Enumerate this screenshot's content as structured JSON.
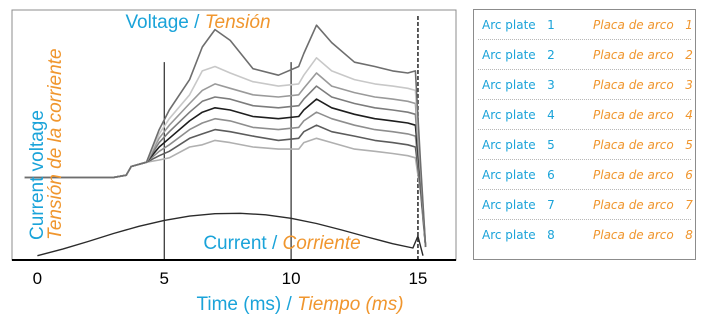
{
  "colors": {
    "english_text": "#1aa3d9",
    "spanish_text": "#f0962e",
    "axis": "#000000",
    "frame": "#8c8c8c"
  },
  "chart_data": {
    "type": "line",
    "title": {
      "en": "Voltage",
      "sep": " / ",
      "es": "Tensión"
    },
    "current_label": {
      "en": "Current",
      "sep": " / ",
      "es": "Corriente"
    },
    "xlabel": {
      "en": "Time (ms)",
      "sep": " / ",
      "es": "Tiempo (ms)"
    },
    "ylabel": {
      "en": "Current voltage",
      "es": "Tensión de la corriente"
    },
    "x_ticks": [
      "0",
      "5",
      "10",
      "15"
    ],
    "xlim": [
      -1,
      16.5
    ],
    "ylim": [
      -0.5,
      11
    ],
    "vertical_markers": [
      5,
      10
    ],
    "arc_end_marker": 15,
    "grid": false,
    "legend_position": "right",
    "voltage_series": [
      {
        "name": "Arc plate 1",
        "shade": "#6e6e6e",
        "x": [
          -0.5,
          3,
          3.5,
          3.7,
          4.3,
          4.8,
          5.2,
          6,
          6.5,
          7,
          7.6,
          8.5,
          9.5,
          10.3,
          10.5,
          11,
          11.6,
          12.5,
          13.3,
          14,
          14.6,
          14.9,
          15.1,
          15.3
        ],
        "y": [
          3.3,
          3.3,
          3.4,
          3.8,
          4.0,
          5.5,
          6.4,
          7.8,
          9.3,
          10.1,
          9.6,
          8.3,
          8.0,
          8.4,
          9.0,
          10.3,
          9.5,
          8.6,
          8.4,
          8.2,
          8.1,
          8.2,
          4.0,
          0.1
        ]
      },
      {
        "name": "Arc plate 2",
        "shade": "#c8c8c8",
        "x": [
          -0.5,
          3,
          3.5,
          3.7,
          4.3,
          4.8,
          5.2,
          6,
          6.5,
          7,
          7.6,
          8.5,
          9.5,
          10.3,
          10.5,
          11,
          11.6,
          12.5,
          13.3,
          14,
          14.6,
          14.9,
          15.1,
          15.3
        ],
        "y": [
          3.3,
          3.3,
          3.4,
          3.8,
          4.0,
          5.3,
          6.0,
          7.1,
          8.2,
          8.4,
          8.1,
          7.7,
          7.5,
          7.6,
          8.0,
          8.8,
          8.2,
          7.8,
          7.6,
          7.5,
          7.4,
          7.3,
          3.8,
          0.1
        ]
      },
      {
        "name": "Arc plate 3",
        "shade": "#9a9a9a",
        "x": [
          -0.5,
          3,
          3.5,
          3.7,
          4.3,
          4.8,
          5.2,
          6,
          6.5,
          7,
          7.6,
          8.5,
          9.5,
          10.3,
          10.5,
          11,
          11.6,
          12.5,
          13.3,
          14,
          14.6,
          14.9,
          15.1,
          15.3
        ],
        "y": [
          3.3,
          3.3,
          3.4,
          3.8,
          4.0,
          5.1,
          5.7,
          6.7,
          7.3,
          7.6,
          7.4,
          7.1,
          7.0,
          7.1,
          7.4,
          8.1,
          7.5,
          7.2,
          7.0,
          6.9,
          6.8,
          6.7,
          3.6,
          0.1
        ]
      },
      {
        "name": "Arc plate 4",
        "shade": "#7c7c7c",
        "x": [
          -0.5,
          3,
          3.5,
          3.7,
          4.3,
          4.8,
          5.2,
          6,
          6.5,
          7,
          7.6,
          8.5,
          9.5,
          10.3,
          10.5,
          11,
          11.6,
          12.5,
          13.3,
          14,
          14.6,
          14.9,
          15.1,
          15.3
        ],
        "y": [
          3.3,
          3.3,
          3.4,
          3.8,
          4.0,
          4.9,
          5.4,
          6.3,
          6.8,
          7.0,
          6.9,
          6.6,
          6.5,
          6.6,
          6.9,
          7.5,
          7.0,
          6.7,
          6.5,
          6.4,
          6.3,
          6.2,
          3.4,
          0.1
        ]
      },
      {
        "name": "Arc plate 5",
        "shade": "#1e1e1e",
        "x": [
          -0.5,
          3,
          3.5,
          3.7,
          4.3,
          4.8,
          5.2,
          6,
          6.5,
          7,
          7.6,
          8.5,
          9.5,
          10.3,
          10.5,
          11,
          11.6,
          12.5,
          13.3,
          14,
          14.6,
          14.9,
          15.1,
          15.3
        ],
        "y": [
          3.3,
          3.3,
          3.4,
          3.8,
          4.0,
          4.7,
          5.1,
          5.9,
          6.3,
          6.5,
          6.4,
          6.1,
          6.0,
          6.1,
          6.4,
          6.9,
          6.5,
          6.2,
          6.0,
          5.9,
          5.8,
          5.7,
          3.2,
          0.1
        ]
      },
      {
        "name": "Arc plate 6",
        "shade": "#8e8e8e",
        "x": [
          -0.5,
          3,
          3.5,
          3.7,
          4.3,
          4.8,
          5.2,
          6,
          6.5,
          7,
          7.6,
          8.5,
          9.5,
          10.3,
          10.5,
          11,
          11.6,
          12.5,
          13.3,
          14,
          14.6,
          14.9,
          15.1,
          15.3
        ],
        "y": [
          3.3,
          3.3,
          3.4,
          3.8,
          4.0,
          4.5,
          4.8,
          5.5,
          5.8,
          6.0,
          5.9,
          5.6,
          5.5,
          5.6,
          5.9,
          6.3,
          6.0,
          5.7,
          5.5,
          5.4,
          5.3,
          5.2,
          3.0,
          0.1
        ]
      },
      {
        "name": "Arc plate 7",
        "shade": "#5c5c5c",
        "x": [
          -0.5,
          3,
          3.5,
          3.7,
          4.3,
          4.8,
          5.2,
          6,
          6.5,
          7,
          7.6,
          8.5,
          9.5,
          10.3,
          10.5,
          11,
          11.6,
          12.5,
          13.3,
          14,
          14.6,
          14.9,
          15.1,
          15.3
        ],
        "y": [
          3.3,
          3.3,
          3.4,
          3.8,
          4.0,
          4.3,
          4.5,
          5.1,
          5.3,
          5.5,
          5.4,
          5.2,
          5.0,
          5.1,
          5.4,
          5.7,
          5.4,
          5.2,
          5.0,
          4.9,
          4.8,
          4.7,
          2.8,
          0.1
        ]
      },
      {
        "name": "Arc plate 8",
        "shade": "#b0b0b0",
        "x": [
          -0.5,
          3,
          3.5,
          3.7,
          4.3,
          4.8,
          5.2,
          6,
          6.5,
          7,
          7.6,
          8.5,
          9.5,
          10.3,
          10.5,
          11,
          11.6,
          12.5,
          13.3,
          14,
          14.6,
          14.9,
          15.1,
          15.3
        ],
        "y": [
          3.3,
          3.3,
          3.4,
          3.8,
          4.0,
          4.1,
          4.2,
          4.7,
          4.8,
          5.0,
          4.9,
          4.7,
          4.6,
          4.6,
          4.9,
          5.1,
          4.9,
          4.6,
          4.5,
          4.4,
          4.3,
          4.2,
          2.6,
          0.1
        ]
      }
    ],
    "current_series": {
      "shade": "#2b2b2b",
      "x": [
        0,
        1,
        2,
        3,
        4,
        5,
        6,
        7,
        8,
        9,
        10,
        11,
        12,
        13,
        14,
        14.8,
        15.0,
        15.2
      ],
      "y": [
        -0.3,
        0.0,
        0.35,
        0.72,
        1.05,
        1.32,
        1.52,
        1.63,
        1.65,
        1.58,
        1.42,
        1.18,
        0.88,
        0.56,
        0.25,
        0.05,
        0.6,
        -0.3
      ]
    }
  },
  "legend": {
    "items": [
      {
        "en": "Arc plate",
        "num": "1",
        "es": "Placa de arco",
        "es_num": "1"
      },
      {
        "en": "Arc plate",
        "num": "2",
        "es": "Placa de arco",
        "es_num": "2"
      },
      {
        "en": "Arc plate",
        "num": "3",
        "es": "Placa de arco",
        "es_num": "3"
      },
      {
        "en": "Arc plate",
        "num": "4",
        "es": "Placa de arco",
        "es_num": "4"
      },
      {
        "en": "Arc plate",
        "num": "5",
        "es": "Placa de arco",
        "es_num": "5"
      },
      {
        "en": "Arc plate",
        "num": "6",
        "es": "Placa de arco",
        "es_num": "6"
      },
      {
        "en": "Arc plate",
        "num": "7",
        "es": "Placa de arco",
        "es_num": "7"
      },
      {
        "en": "Arc plate",
        "num": "8",
        "es": "Placa de arco",
        "es_num": "8"
      }
    ]
  }
}
